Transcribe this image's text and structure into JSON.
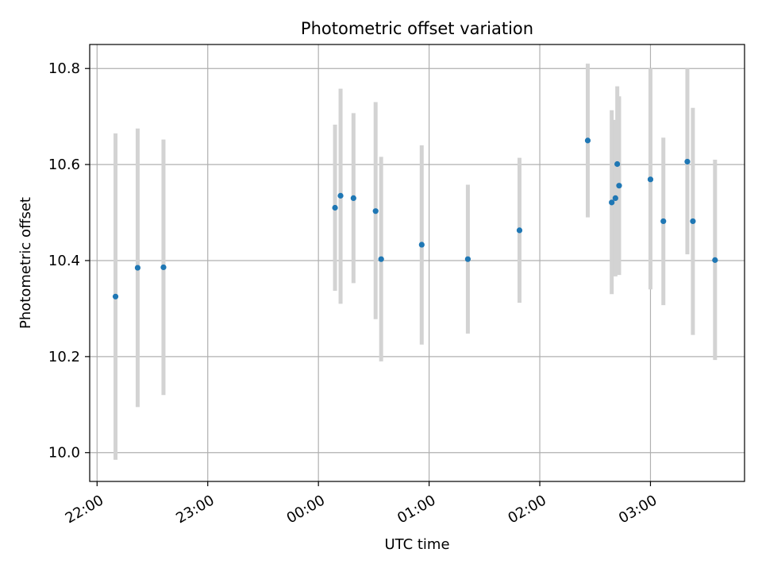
{
  "chart_data": {
    "type": "scatter",
    "title": "Photometric offset variation",
    "xlabel": "UTC time",
    "ylabel": "Photometric offset",
    "x_tick_labels": [
      "22:00",
      "23:00",
      "00:00",
      "01:00",
      "02:00",
      "03:00"
    ],
    "x_ticks": [
      "2023-01-01T22:00",
      "2023-01-01T23:00",
      "2023-01-02T00:00",
      "2023-01-02T01:00",
      "2023-01-02T02:00",
      "2023-01-02T03:00"
    ],
    "xlim": [
      "2023-01-01T21:56",
      "2023-01-02T03:51"
    ],
    "y_ticks": [
      10.0,
      10.2,
      10.4,
      10.6,
      10.8
    ],
    "y_tick_labels": [
      "10.0",
      "10.2",
      "10.4",
      "10.6",
      "10.8"
    ],
    "ylim": [
      9.94,
      10.85
    ],
    "grid": true,
    "colors": {
      "points": "#1f77b4",
      "errorbars": "#d3d3d3",
      "grid": "#b0b0b0"
    },
    "points": [
      {
        "x": "2023-01-01T22:10",
        "y": 10.325,
        "ylo": 9.985,
        "yhi": 10.665
      },
      {
        "x": "2023-01-01T22:22",
        "y": 10.385,
        "ylo": 10.095,
        "yhi": 10.675
      },
      {
        "x": "2023-01-01T22:36",
        "y": 10.386,
        "ylo": 10.12,
        "yhi": 10.652
      },
      {
        "x": "2023-01-02T00:09",
        "y": 10.51,
        "ylo": 10.337,
        "yhi": 10.683
      },
      {
        "x": "2023-01-02T00:12",
        "y": 10.535,
        "ylo": 10.31,
        "yhi": 10.758
      },
      {
        "x": "2023-01-02T00:19",
        "y": 10.53,
        "ylo": 10.353,
        "yhi": 10.707
      },
      {
        "x": "2023-01-02T00:31",
        "y": 10.503,
        "ylo": 10.278,
        "yhi": 10.73
      },
      {
        "x": "2023-01-02T00:34",
        "y": 10.403,
        "ylo": 10.19,
        "yhi": 10.616
      },
      {
        "x": "2023-01-02T00:56",
        "y": 10.433,
        "ylo": 10.225,
        "yhi": 10.64
      },
      {
        "x": "2023-01-02T01:21",
        "y": 10.403,
        "ylo": 10.248,
        "yhi": 10.558
      },
      {
        "x": "2023-01-02T01:49",
        "y": 10.463,
        "ylo": 10.312,
        "yhi": 10.614
      },
      {
        "x": "2023-01-02T02:26",
        "y": 10.65,
        "ylo": 10.49,
        "yhi": 10.81
      },
      {
        "x": "2023-01-02T02:39",
        "y": 10.521,
        "ylo": 10.33,
        "yhi": 10.713
      },
      {
        "x": "2023-01-02T02:41",
        "y": 10.53,
        "ylo": 10.367,
        "yhi": 10.693
      },
      {
        "x": "2023-01-02T02:42",
        "y": 10.601,
        "ylo": 10.44,
        "yhi": 10.763
      },
      {
        "x": "2023-01-02T02:43",
        "y": 10.556,
        "ylo": 10.37,
        "yhi": 10.742
      },
      {
        "x": "2023-01-02T03:00",
        "y": 10.569,
        "ylo": 10.34,
        "yhi": 10.8
      },
      {
        "x": "2023-01-02T03:07",
        "y": 10.482,
        "ylo": 10.307,
        "yhi": 10.656
      },
      {
        "x": "2023-01-02T03:20",
        "y": 10.606,
        "ylo": 10.413,
        "yhi": 10.8
      },
      {
        "x": "2023-01-02T03:23",
        "y": 10.482,
        "ylo": 10.245,
        "yhi": 10.718
      },
      {
        "x": "2023-01-02T03:35",
        "y": 10.401,
        "ylo": 10.193,
        "yhi": 10.61
      }
    ]
  }
}
